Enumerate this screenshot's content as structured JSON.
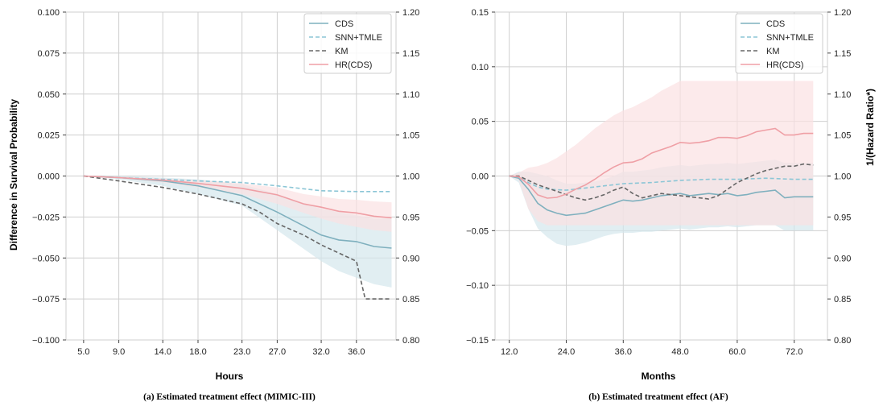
{
  "figure": {
    "left_ylabel": "Difference in Survival Probability",
    "right_ylabel": "1/(Hazard Ratio*)"
  },
  "chart_data": [
    {
      "type": "line",
      "caption": "(a) Estimated treatment effect (MIMIC-III)",
      "xlabel": "Hours",
      "x_ticks": [
        "5.0",
        "9.0",
        "14.0",
        "18.0",
        "23.0",
        "27.0",
        "32.0",
        "36.0"
      ],
      "xlim": [
        3.0,
        40.5
      ],
      "ylim_left": [
        -0.1,
        0.1
      ],
      "ylim_right": [
        0.8,
        1.2
      ],
      "y_ticks_left": [
        "−0.100",
        "−0.075",
        "−0.050",
        "−0.025",
        "0.000",
        "0.025",
        "0.050",
        "0.075",
        "0.100"
      ],
      "y_ticks_right": [
        "0.80",
        "0.85",
        "0.90",
        "0.95",
        "1.00",
        "1.05",
        "1.10",
        "1.15",
        "1.20"
      ],
      "grid": true,
      "legend": "top-right",
      "legend_entries": [
        "CDS",
        "SNN+TMLE",
        "KM",
        "HR(CDS)"
      ],
      "colors": {
        "CDS": "#7fb0be",
        "SNN+TMLE": "#8cc6d6",
        "KM": "#666666",
        "HR(CDS)": "#ef9fa5"
      },
      "series": [
        {
          "name": "CDS",
          "axis": "left",
          "style": "solid",
          "x": [
            5,
            9,
            14,
            18,
            23,
            27,
            32,
            34,
            36,
            38,
            40
          ],
          "y": [
            0.0,
            -0.001,
            -0.003,
            -0.006,
            -0.012,
            -0.022,
            -0.036,
            -0.039,
            -0.04,
            -0.043,
            -0.044
          ],
          "band_lower": [
            0.0,
            -0.002,
            -0.006,
            -0.011,
            -0.018,
            -0.033,
            -0.052,
            -0.058,
            -0.062,
            -0.066,
            -0.068
          ],
          "band_upper": [
            0.0,
            0.0,
            -0.001,
            -0.002,
            -0.005,
            -0.011,
            -0.02,
            -0.022,
            -0.024,
            -0.026,
            -0.026
          ]
        },
        {
          "name": "SNN+TMLE",
          "axis": "left",
          "style": "dashed",
          "x": [
            5,
            9,
            14,
            18,
            23,
            27,
            32,
            36,
            40
          ],
          "y": [
            0.0,
            -0.001,
            -0.002,
            -0.003,
            -0.004,
            -0.006,
            -0.009,
            -0.0095,
            -0.0095
          ]
        },
        {
          "name": "KM",
          "axis": "left",
          "style": "dashed",
          "x": [
            5,
            9,
            14,
            18,
            23,
            25,
            27,
            30,
            32,
            34,
            36,
            37,
            38,
            40
          ],
          "y": [
            0.0,
            -0.003,
            -0.007,
            -0.011,
            -0.017,
            -0.022,
            -0.029,
            -0.036,
            -0.042,
            -0.047,
            -0.052,
            -0.075,
            -0.075,
            -0.075
          ]
        },
        {
          "name": "HR(CDS)",
          "axis": "right",
          "style": "solid",
          "x": [
            5,
            9,
            14,
            18,
            23,
            27,
            30,
            32,
            34,
            36,
            38,
            40
          ],
          "y": [
            1.0,
            0.998,
            0.995,
            0.991,
            0.985,
            0.977,
            0.966,
            0.962,
            0.957,
            0.955,
            0.951,
            0.949
          ],
          "band_lower": [
            1.0,
            0.997,
            0.992,
            0.986,
            0.978,
            0.966,
            0.955,
            0.948,
            0.942,
            0.938,
            0.934,
            0.932
          ],
          "band_upper": [
            1.0,
            0.999,
            0.997,
            0.995,
            0.991,
            0.986,
            0.978,
            0.975,
            0.972,
            0.971,
            0.969,
            0.968
          ]
        }
      ]
    },
    {
      "type": "line",
      "caption": "(b) Estimated treatment effect (AF)",
      "xlabel": "Months",
      "x_ticks": [
        "12.0",
        "24.0",
        "36.0",
        "48.0",
        "60.0",
        "72.0"
      ],
      "xlim": [
        9.0,
        79.0
      ],
      "ylim_left": [
        -0.15,
        0.15
      ],
      "ylim_right": [
        0.8,
        1.2
      ],
      "y_ticks_left": [
        "−0.15",
        "−0.10",
        "−0.05",
        "0.00",
        "0.05",
        "0.10",
        "0.15"
      ],
      "y_ticks_right": [
        "0.80",
        "0.85",
        "0.90",
        "0.95",
        "1.00",
        "1.05",
        "1.10",
        "1.15",
        "1.20"
      ],
      "grid": true,
      "legend": "top-right",
      "legend_entries": [
        "CDS",
        "SNN+TMLE",
        "KM",
        "HR(CDS)"
      ],
      "colors": {
        "CDS": "#7fb0be",
        "SNN+TMLE": "#8cc6d6",
        "KM": "#666666",
        "HR(CDS)": "#ef9fa5"
      },
      "series": [
        {
          "name": "CDS",
          "axis": "left",
          "style": "solid",
          "x": [
            12,
            14,
            16,
            18,
            20,
            22,
            24,
            26,
            28,
            30,
            32,
            34,
            36,
            38,
            40,
            42,
            44,
            46,
            48,
            50,
            52,
            54,
            56,
            58,
            60,
            62,
            64,
            66,
            68,
            70,
            72,
            74,
            76
          ],
          "y": [
            0.0,
            -0.002,
            -0.012,
            -0.025,
            -0.031,
            -0.034,
            -0.036,
            -0.035,
            -0.034,
            -0.031,
            -0.028,
            -0.025,
            -0.022,
            -0.023,
            -0.022,
            -0.02,
            -0.018,
            -0.017,
            -0.016,
            -0.018,
            -0.017,
            -0.016,
            -0.017,
            -0.016,
            -0.018,
            -0.017,
            -0.015,
            -0.014,
            -0.013,
            -0.02,
            -0.019,
            -0.019,
            -0.019
          ],
          "band_lower": [
            0.0,
            -0.006,
            -0.03,
            -0.048,
            -0.056,
            -0.062,
            -0.064,
            -0.063,
            -0.061,
            -0.058,
            -0.055,
            -0.053,
            -0.052,
            -0.052,
            -0.051,
            -0.051,
            -0.05,
            -0.049,
            -0.048,
            -0.049,
            -0.048,
            -0.047,
            -0.047,
            -0.046,
            -0.047,
            -0.046,
            -0.045,
            -0.045,
            -0.045,
            -0.05,
            -0.05,
            -0.05,
            -0.05
          ],
          "band_upper": [
            0.0,
            0.004,
            0.004,
            0.002,
            0.0,
            -0.004,
            -0.007,
            -0.007,
            -0.006,
            -0.005,
            -0.003,
            0.0,
            0.004,
            0.004,
            0.005,
            0.006,
            0.008,
            0.009,
            0.01,
            0.009,
            0.01,
            0.011,
            0.011,
            0.012,
            0.011,
            0.012,
            0.013,
            0.014,
            0.015,
            0.012,
            0.012,
            0.012,
            0.012
          ]
        },
        {
          "name": "SNN+TMLE",
          "axis": "left",
          "style": "dashed",
          "x": [
            12,
            14,
            16,
            18,
            20,
            24,
            28,
            32,
            36,
            42,
            48,
            54,
            60,
            66,
            72,
            76
          ],
          "y": [
            0.0,
            -0.001,
            -0.006,
            -0.01,
            -0.012,
            -0.013,
            -0.011,
            -0.009,
            -0.007,
            -0.006,
            -0.004,
            -0.003,
            -0.003,
            -0.002,
            -0.003,
            -0.003
          ]
        },
        {
          "name": "KM",
          "axis": "left",
          "style": "dashed",
          "x": [
            12,
            14,
            16,
            18,
            20,
            22,
            24,
            26,
            28,
            30,
            32,
            34,
            36,
            38,
            40,
            42,
            44,
            46,
            48,
            50,
            52,
            54,
            56,
            58,
            60,
            62,
            64,
            66,
            68,
            70,
            72,
            74,
            76
          ],
          "y": [
            0.0,
            0.0,
            -0.004,
            -0.008,
            -0.011,
            -0.014,
            -0.017,
            -0.02,
            -0.022,
            -0.02,
            -0.017,
            -0.013,
            -0.01,
            -0.016,
            -0.02,
            -0.018,
            -0.016,
            -0.017,
            -0.018,
            -0.019,
            -0.02,
            -0.021,
            -0.018,
            -0.012,
            -0.006,
            -0.002,
            0.002,
            0.005,
            0.007,
            0.009,
            0.009,
            0.011,
            0.01
          ]
        },
        {
          "name": "HR(CDS)",
          "axis": "right",
          "style": "solid",
          "x": [
            12,
            14,
            16,
            18,
            20,
            22,
            24,
            26,
            28,
            30,
            32,
            34,
            36,
            38,
            40,
            42,
            44,
            46,
            48,
            50,
            52,
            54,
            56,
            58,
            60,
            62,
            64,
            66,
            68,
            70,
            72,
            74,
            76
          ],
          "y": [
            1.0,
            0.999,
            0.99,
            0.977,
            0.973,
            0.974,
            0.978,
            0.984,
            0.989,
            0.996,
            1.004,
            1.011,
            1.016,
            1.017,
            1.021,
            1.028,
            1.032,
            1.036,
            1.041,
            1.04,
            1.041,
            1.043,
            1.047,
            1.047,
            1.046,
            1.049,
            1.054,
            1.056,
            1.058,
            1.05,
            1.05,
            1.052,
            1.052
          ],
          "band_lower": [
            1.0,
            0.995,
            0.96,
            0.945,
            0.94,
            0.94,
            0.94,
            0.94,
            0.94,
            0.94,
            0.94,
            0.94,
            0.94,
            0.94,
            0.94,
            0.94,
            0.94,
            0.94,
            0.94,
            0.94,
            0.94,
            0.94,
            0.94,
            0.94,
            0.94,
            0.94,
            0.94,
            0.94,
            0.94,
            0.94,
            0.94,
            0.94,
            0.94
          ],
          "band_upper": [
            1.0,
            1.004,
            1.01,
            1.012,
            1.016,
            1.022,
            1.03,
            1.038,
            1.048,
            1.058,
            1.066,
            1.074,
            1.08,
            1.084,
            1.09,
            1.096,
            1.104,
            1.11,
            1.116,
            1.116,
            1.116,
            1.116,
            1.116,
            1.116,
            1.116,
            1.116,
            1.116,
            1.116,
            1.116,
            1.116,
            1.116,
            1.116,
            1.116
          ]
        }
      ]
    }
  ]
}
